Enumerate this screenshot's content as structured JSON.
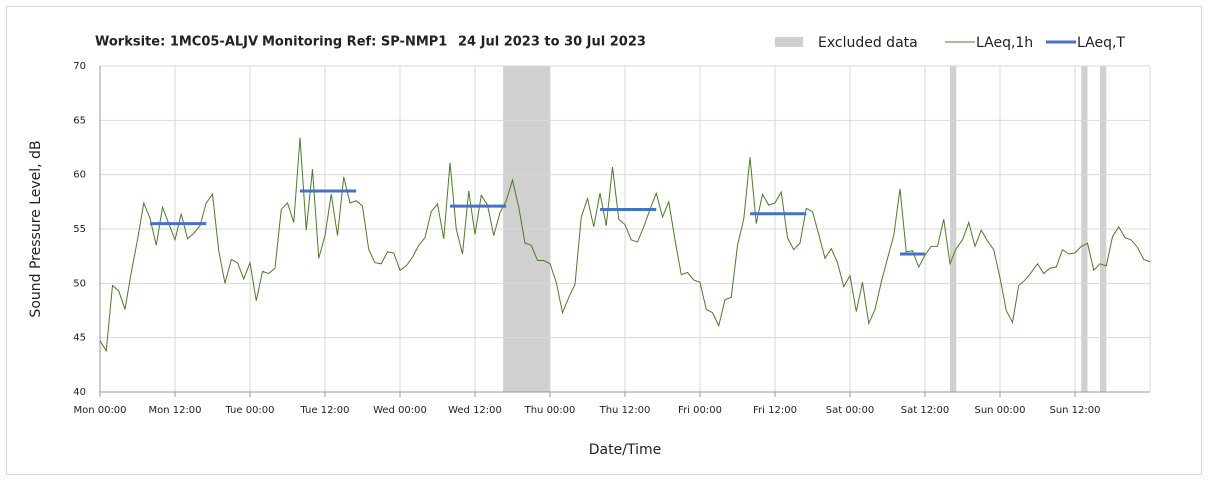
{
  "chart_data": {
    "type": "line",
    "title_parts": [
      "Worksite: 1MC05-ALJV",
      "Monitoring Ref: SP-NMP1",
      "24 Jul 2023 to 30 Jul 2023"
    ],
    "x_label": "Date/Time",
    "y_label": "Sound Pressure Level, dB",
    "xlim": [
      0,
      168
    ],
    "ylim": [
      40,
      70
    ],
    "xticks": [
      {
        "value": 0,
        "label": "Mon 00:00"
      },
      {
        "value": 12,
        "label": "Mon 12:00"
      },
      {
        "value": 24,
        "label": "Tue 00:00"
      },
      {
        "value": 36,
        "label": "Tue 12:00"
      },
      {
        "value": 48,
        "label": "Wed 00:00"
      },
      {
        "value": 60,
        "label": "Wed 12:00"
      },
      {
        "value": 72,
        "label": "Thu 00:00"
      },
      {
        "value": 84,
        "label": "Thu 12:00"
      },
      {
        "value": 96,
        "label": "Fri 00:00"
      },
      {
        "value": 108,
        "label": "Fri 12:00"
      },
      {
        "value": 120,
        "label": "Sat 00:00"
      },
      {
        "value": 132,
        "label": "Sat 12:00"
      },
      {
        "value": 144,
        "label": "Sun 00:00"
      },
      {
        "value": 156,
        "label": "Sun 12:00"
      }
    ],
    "yticks": [
      40,
      45,
      50,
      55,
      60,
      65,
      70
    ],
    "grid": true,
    "excluded_label": "Excluded data",
    "excluded_color": "#d0d0d0",
    "excluded": [
      [
        64.5,
        72
      ],
      [
        136,
        137
      ],
      [
        157,
        158
      ],
      [
        160,
        161
      ]
    ],
    "series": [
      {
        "name": "LAeq,1h",
        "color": "#4e7a2c",
        "x": [
          0,
          1,
          2,
          3,
          4,
          5,
          6,
          7,
          8,
          9,
          10,
          11,
          12,
          13,
          14,
          15,
          16,
          17,
          18,
          19,
          20,
          21,
          22,
          23,
          24,
          25,
          26,
          27,
          28,
          29,
          30,
          31,
          32,
          33,
          34,
          35,
          36,
          37,
          38,
          39,
          40,
          41,
          42,
          43,
          44,
          45,
          46,
          47,
          48,
          49,
          50,
          51,
          52,
          53,
          54,
          55,
          56,
          57,
          58,
          59,
          60,
          61,
          62,
          63,
          64,
          65,
          66,
          67,
          68,
          69,
          70,
          71,
          72,
          73,
          74,
          75,
          76,
          77,
          78,
          79,
          80,
          81,
          82,
          83,
          84,
          85,
          86,
          87,
          88,
          89,
          90,
          91,
          92,
          93,
          94,
          95,
          96,
          97,
          98,
          99,
          100,
          101,
          102,
          103,
          104,
          105,
          106,
          107,
          108,
          109,
          110,
          111,
          112,
          113,
          114,
          115,
          116,
          117,
          118,
          119,
          120,
          121,
          122,
          123,
          124,
          125,
          126,
          127,
          128,
          129,
          130,
          131,
          132,
          133,
          134,
          135,
          136,
          137,
          138,
          139,
          140,
          141,
          142,
          143,
          144,
          145,
          146,
          147,
          148,
          149,
          150,
          151,
          152,
          153,
          154,
          155,
          156,
          157,
          158,
          159,
          160,
          161,
          162,
          163,
          164,
          165,
          166,
          167,
          168
        ],
        "values": [
          44.7,
          43.8,
          49.8,
          49.3,
          47.6,
          51,
          54,
          57.4,
          56,
          53.5,
          57,
          55.5,
          54,
          56.4,
          54.1,
          54.6,
          55.3,
          57.4,
          58.2,
          53,
          50,
          52.2,
          51.9,
          50.4,
          51.9,
          48.4,
          51.1,
          50.9,
          51.4,
          56.8,
          57.4,
          55.6,
          63.4,
          54.9,
          60.5,
          52.3,
          54.4,
          58.2,
          54.4,
          59.8,
          57.4,
          57.6,
          57.1,
          53.1,
          51.9,
          51.8,
          52.9,
          52.8,
          51.2,
          51.6,
          52.4,
          53.5,
          54.2,
          56.6,
          57.3,
          54.1,
          61.1,
          55,
          52.7,
          58.5,
          54.5,
          58.1,
          57.2,
          54.4,
          56.5,
          57.6,
          59.5,
          57,
          53.7,
          53.5,
          52.1,
          52.1,
          51.8,
          50.1,
          47.3,
          48.7,
          49.9,
          56.1,
          57.8,
          55.2,
          58.3,
          55.3,
          60.7,
          55.9,
          55.4,
          54,
          53.8,
          55.2,
          56.8,
          58.3,
          56.1,
          57.5,
          54,
          50.8,
          51,
          50.3,
          50.1,
          47.6,
          47.3,
          46.1,
          48.5,
          48.7,
          53.5,
          55.9,
          61.6,
          55.5,
          58.2,
          57.2,
          57.4,
          58.4,
          54.2,
          53.1,
          53.7,
          56.9,
          56.6,
          54.5,
          52.3,
          53.2,
          51.9,
          49.7,
          50.7,
          47.4,
          50.1,
          46.3,
          47.6,
          50.1,
          52.3,
          54.4,
          58.7,
          52.9,
          53,
          51.5,
          52.6,
          53.4,
          53.4,
          55.9,
          51.8,
          53.2,
          54,
          55.6,
          53.4,
          54.9,
          53.9,
          53.1,
          50.5,
          47.5,
          46.4,
          49.8,
          50.3,
          51,
          51.8,
          50.9,
          51.4,
          51.5,
          53.1,
          52.7,
          52.8,
          53.4,
          53.7,
          51.2,
          51.8,
          51.6,
          54.3,
          55.2,
          54.2,
          54,
          53.3,
          52.2,
          52
        ]
      },
      {
        "name": "LAeq,T",
        "color": "#4472c4",
        "segments": [
          [
            8,
            17
          ],
          [
            32,
            41
          ],
          [
            56,
            65
          ],
          [
            80,
            89
          ],
          [
            104,
            113
          ],
          [
            128,
            132
          ]
        ],
        "values": [
          55.5,
          58.5,
          57.1,
          56.8,
          56.4,
          52.7
        ]
      }
    ]
  }
}
